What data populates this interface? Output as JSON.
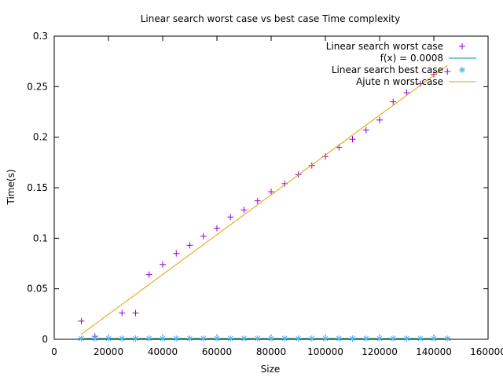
{
  "chart_data": {
    "type": "scatter",
    "title": "Linear search worst case vs best case Time complexity",
    "xlabel": "Size",
    "ylabel": "Time(s)",
    "xlim": [
      0,
      160000
    ],
    "ylim": [
      0,
      0.3
    ],
    "grid": false,
    "legend_position": "top-right",
    "x_ticks": [
      "0",
      "20000",
      "40000",
      "60000",
      "80000",
      "100000",
      "120000",
      "140000",
      "160000"
    ],
    "y_ticks": [
      "0",
      "0.05",
      "0.1",
      "0.15",
      "0.2",
      "0.25",
      "0.3"
    ],
    "series": [
      {
        "name": "Linear search worst case",
        "kind": "points",
        "marker": "plus",
        "color": "#9400d3",
        "points": [
          [
            10000,
            0.018
          ],
          [
            15000,
            0.003
          ],
          [
            20000,
            0.001
          ],
          [
            25000,
            0.026
          ],
          [
            30000,
            0.026
          ],
          [
            35000,
            0.064
          ],
          [
            40000,
            0.074
          ],
          [
            45000,
            0.085
          ],
          [
            50000,
            0.093
          ],
          [
            55000,
            0.102
          ],
          [
            60000,
            0.11
          ],
          [
            65000,
            0.121
          ],
          [
            70000,
            0.128
          ],
          [
            75000,
            0.137
          ],
          [
            80000,
            0.146
          ],
          [
            85000,
            0.154
          ],
          [
            90000,
            0.163
          ],
          [
            95000,
            0.172
          ],
          [
            100000,
            0.181
          ],
          [
            105000,
            0.19
          ],
          [
            110000,
            0.198
          ],
          [
            115000,
            0.207
          ],
          [
            120000,
            0.217
          ],
          [
            125000,
            0.235
          ],
          [
            130000,
            0.244
          ],
          [
            135000,
            0.253
          ],
          [
            140000,
            0.262
          ],
          [
            145000,
            0.265
          ]
        ]
      },
      {
        "name": "f(x) = 0.0008",
        "kind": "line",
        "color": "#009e73",
        "points": [
          [
            10000,
            0.0008
          ],
          [
            145000,
            0.0008
          ]
        ]
      },
      {
        "name": "Linear search best case",
        "kind": "points",
        "marker": "star",
        "color": "#56b4e9",
        "points": [
          [
            10000,
            0.0008
          ],
          [
            15000,
            0.0008
          ],
          [
            20000,
            0.0008
          ],
          [
            25000,
            0.0008
          ],
          [
            30000,
            0.0008
          ],
          [
            35000,
            0.0008
          ],
          [
            40000,
            0.0008
          ],
          [
            45000,
            0.0008
          ],
          [
            50000,
            0.0008
          ],
          [
            55000,
            0.0008
          ],
          [
            60000,
            0.0008
          ],
          [
            65000,
            0.0008
          ],
          [
            70000,
            0.0008
          ],
          [
            75000,
            0.0008
          ],
          [
            80000,
            0.0008
          ],
          [
            85000,
            0.0008
          ],
          [
            90000,
            0.0008
          ],
          [
            95000,
            0.0008
          ],
          [
            100000,
            0.0008
          ],
          [
            105000,
            0.0008
          ],
          [
            110000,
            0.0008
          ],
          [
            115000,
            0.0008
          ],
          [
            120000,
            0.0008
          ],
          [
            125000,
            0.0008
          ],
          [
            130000,
            0.0008
          ],
          [
            135000,
            0.0008
          ],
          [
            140000,
            0.0008
          ],
          [
            145000,
            0.0008
          ]
        ]
      },
      {
        "name": "Ajute n worst case",
        "kind": "line",
        "color": "#e69f00",
        "points": [
          [
            10000,
            0.005
          ],
          [
            145000,
            0.271
          ]
        ]
      }
    ]
  }
}
